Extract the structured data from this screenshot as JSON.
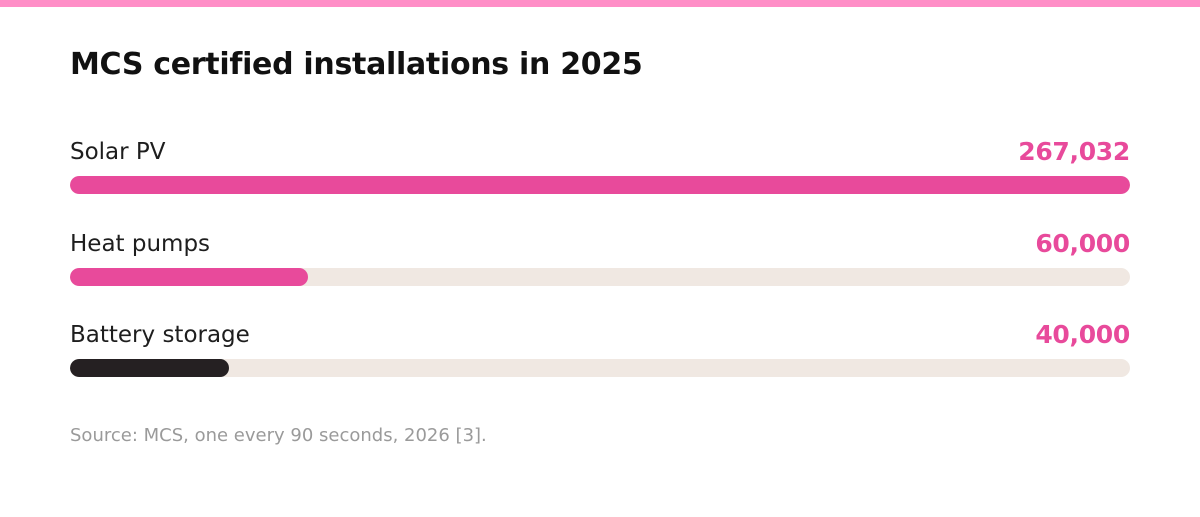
{
  "colors": {
    "stripe": "#ff8ec7",
    "accent": "#e84a9b",
    "dark": "#252022",
    "track": "#f0e8e2"
  },
  "chart_data": {
    "type": "bar",
    "orientation": "horizontal",
    "title": "MCS certified installations in 2025",
    "max_value": 267032,
    "bars": [
      {
        "label": "Solar PV",
        "value": 267032,
        "value_label": "267,032",
        "color": "#e84a9b",
        "value_color": "#e84a9b"
      },
      {
        "label": "Heat pumps",
        "value": 60000,
        "value_label": "60,000",
        "color": "#e84a9b",
        "value_color": "#e84a9b"
      },
      {
        "label": "Battery storage",
        "value": 40000,
        "value_label": "40,000",
        "color": "#252022",
        "value_color": "#e84a9b"
      }
    ],
    "source": "Source: MCS, one every 90 seconds, 2026 [3]."
  }
}
